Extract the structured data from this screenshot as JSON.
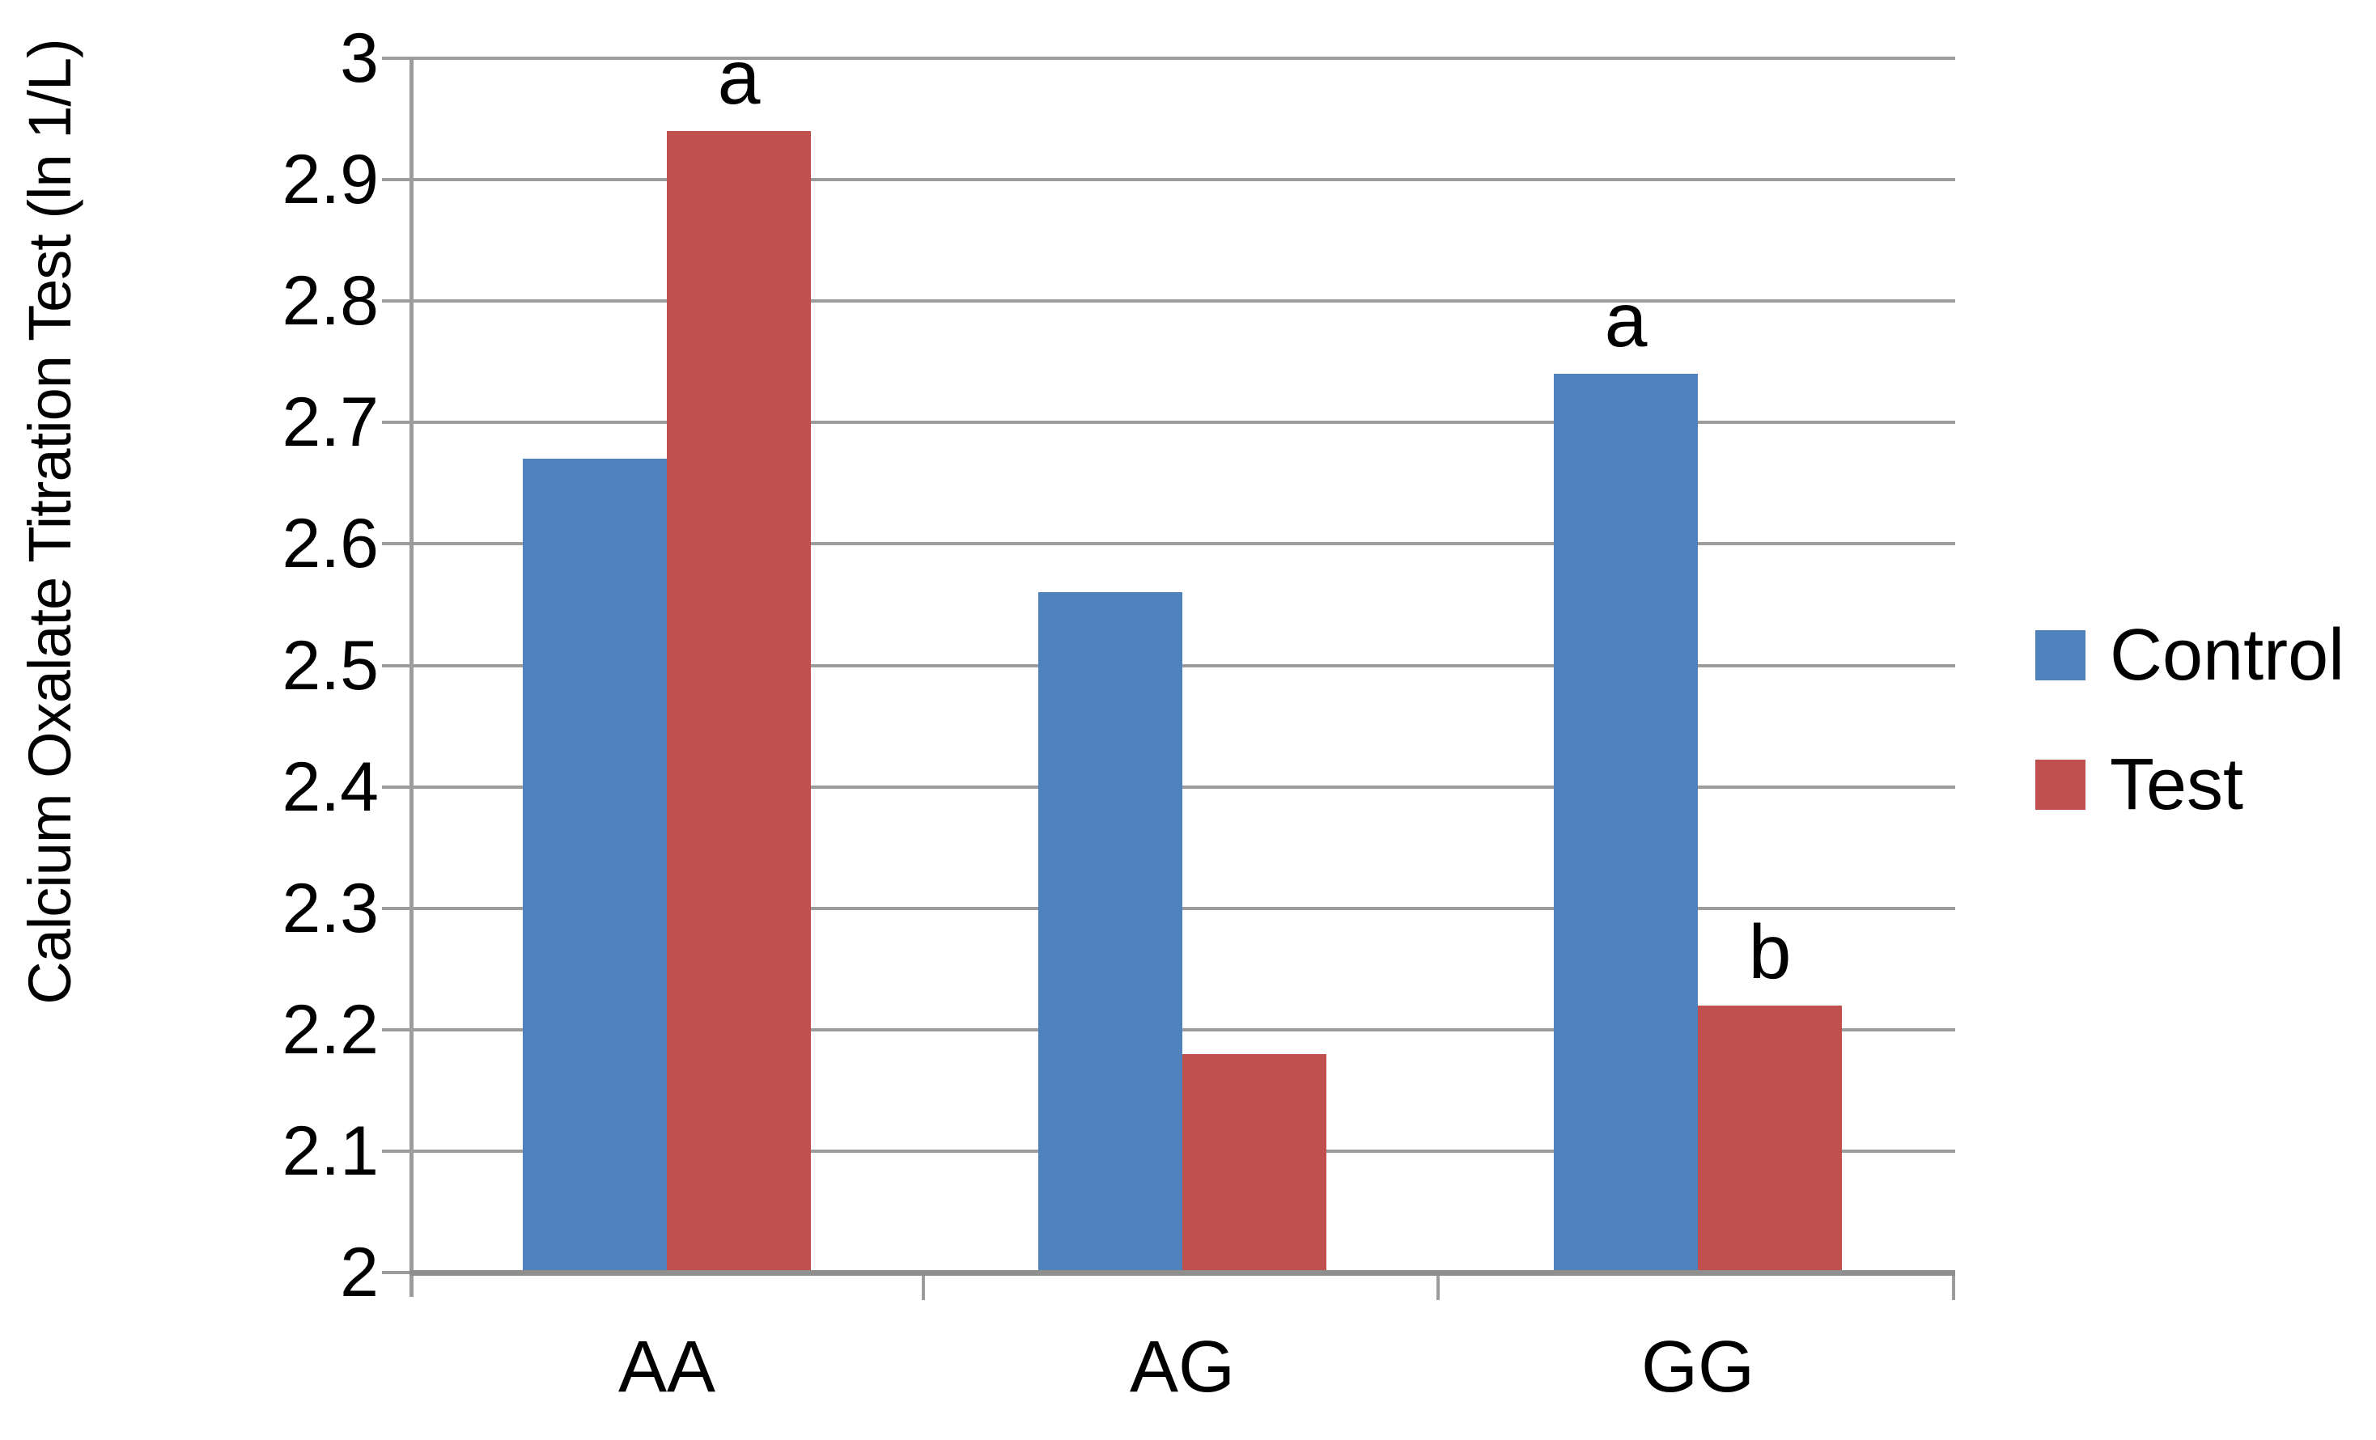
{
  "chart_data": {
    "type": "bar",
    "title": "",
    "xlabel": "",
    "ylabel": "Calcium Oxalate Titration Test (ln 1/L)",
    "categories": [
      "AA",
      "AG",
      "GG"
    ],
    "series": [
      {
        "name": "Control",
        "color": "#4F81BD",
        "values": [
          2.67,
          2.56,
          2.74
        ]
      },
      {
        "name": "Test",
        "color": "#C0504D",
        "values": [
          2.94,
          2.18,
          2.22
        ]
      }
    ],
    "annotations": [
      {
        "category": "AA",
        "series": "Test",
        "label": "a"
      },
      {
        "category": "GG",
        "series": "Control",
        "label": "a"
      },
      {
        "category": "GG",
        "series": "Test",
        "label": "b"
      }
    ],
    "ylim": [
      2,
      3
    ],
    "ytick_step": 0.1,
    "y_ticks": [
      "3",
      "2.9",
      "2.8",
      "2.7",
      "2.6",
      "2.5",
      "2.4",
      "2.3",
      "2.2",
      "2.1",
      "2"
    ],
    "grid": true,
    "legend_position": "right",
    "legend_labels": [
      "Control",
      "Test"
    ]
  },
  "colors": {
    "control_bar": "#4F81BD",
    "test_bar": "#C0504D",
    "gridline": "#9C9C9C",
    "axis_line": "#8F8F8F",
    "background": "#FFFFFF",
    "text": "#000000"
  }
}
